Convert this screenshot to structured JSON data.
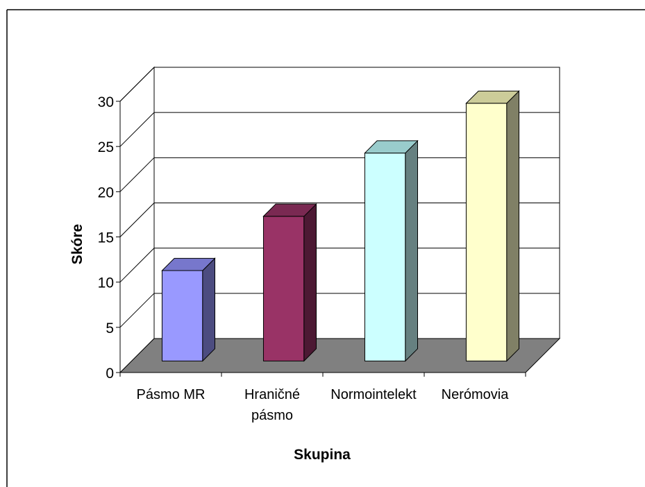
{
  "chart_data": {
    "type": "bar",
    "title": "",
    "xlabel": "Skupina",
    "ylabel": "Skóre",
    "categories": [
      [
        "Pásmo MR"
      ],
      [
        "Hraničné",
        "pásmo"
      ],
      [
        "Normointelekt"
      ],
      [
        "Nerómovia"
      ]
    ],
    "values": [
      10,
      16,
      23,
      28.5
    ],
    "ylim": [
      0,
      30
    ],
    "yticks": [
      0,
      5,
      10,
      15,
      20,
      25,
      30
    ],
    "grid": true,
    "legend": "none",
    "colors": {
      "bars_front": [
        "#9999ff",
        "#993366",
        "#ccffff",
        "#ffffcc"
      ],
      "bars_top": [
        "#7777cc",
        "#7a2952",
        "#99cccc",
        "#cccc99"
      ],
      "bars_side": [
        "#4c4c80",
        "#4c1933",
        "#668080",
        "#808066"
      ],
      "floor": "#808080",
      "walls": "#ffffff",
      "gridlines": "#000000"
    }
  }
}
